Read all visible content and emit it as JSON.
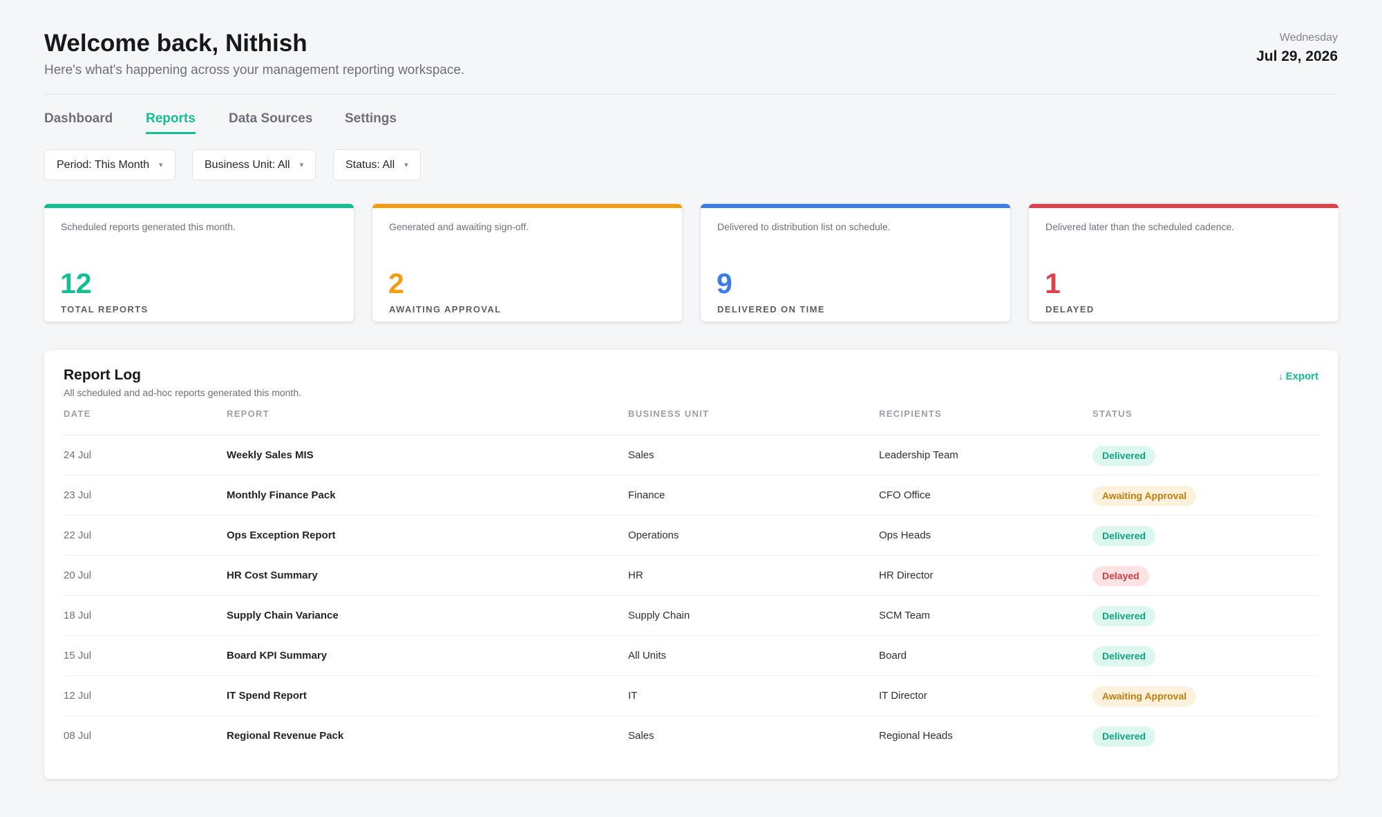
{
  "header": {
    "welcome": "Welcome back, Nithish",
    "subtitle": "Here's what's happening across your management reporting workspace.",
    "weekday": "Wednesday",
    "date": "Jul 29, 2026"
  },
  "tabs": [
    {
      "label": "Dashboard",
      "active": false
    },
    {
      "label": "Reports",
      "active": true
    },
    {
      "label": "Data Sources",
      "active": false
    },
    {
      "label": "Settings",
      "active": false
    }
  ],
  "filters": [
    {
      "label": "Period: This Month"
    },
    {
      "label": "Business Unit: All"
    },
    {
      "label": "Status: All"
    }
  ],
  "cards": [
    {
      "desc": "Scheduled reports generated this month.",
      "value": "12",
      "label": "TOTAL REPORTS",
      "color": "#12bf93"
    },
    {
      "desc": "Generated and awaiting sign-off.",
      "value": "2",
      "label": "AWAITING APPROVAL",
      "color": "#f39c12"
    },
    {
      "desc": "Delivered to distribution list on schedule.",
      "value": "9",
      "label": "DELIVERED ON TIME",
      "color": "#3b7de8"
    },
    {
      "desc": "Delivered later than the scheduled cadence.",
      "value": "1",
      "label": "DELAYED",
      "color": "#e0424d"
    }
  ],
  "log": {
    "title": "Report Log",
    "subtitle": "All scheduled and ad-hoc reports generated this month.",
    "export_label": "Export",
    "export_icon": "↓",
    "columns": [
      "DATE",
      "REPORT",
      "BUSINESS UNIT",
      "RECIPIENTS",
      "STATUS"
    ],
    "rows": [
      {
        "date": "24 Jul",
        "report": "Weekly Sales MIS",
        "unit": "Sales",
        "recipients": "Leadership Team",
        "status": "Delivered",
        "status_type": "delivered"
      },
      {
        "date": "23 Jul",
        "report": "Monthly Finance Pack",
        "unit": "Finance",
        "recipients": "CFO Office",
        "status": "Awaiting Approval",
        "status_type": "awaiting"
      },
      {
        "date": "22 Jul",
        "report": "Ops Exception Report",
        "unit": "Operations",
        "recipients": "Ops Heads",
        "status": "Delivered",
        "status_type": "delivered"
      },
      {
        "date": "20 Jul",
        "report": "HR Cost Summary",
        "unit": "HR",
        "recipients": "HR Director",
        "status": "Delayed",
        "status_type": "delayed"
      },
      {
        "date": "18 Jul",
        "report": "Supply Chain Variance",
        "unit": "Supply Chain",
        "recipients": "SCM Team",
        "status": "Delivered",
        "status_type": "delivered"
      },
      {
        "date": "15 Jul",
        "report": "Board KPI Summary",
        "unit": "All Units",
        "recipients": "Board",
        "status": "Delivered",
        "status_type": "delivered"
      },
      {
        "date": "12 Jul",
        "report": "IT Spend Report",
        "unit": "IT",
        "recipients": "IT Director",
        "status": "Awaiting Approval",
        "status_type": "awaiting"
      },
      {
        "date": "08 Jul",
        "report": "Regional Revenue Pack",
        "unit": "Sales",
        "recipients": "Regional Heads",
        "status": "Delivered",
        "status_type": "delivered"
      }
    ]
  }
}
